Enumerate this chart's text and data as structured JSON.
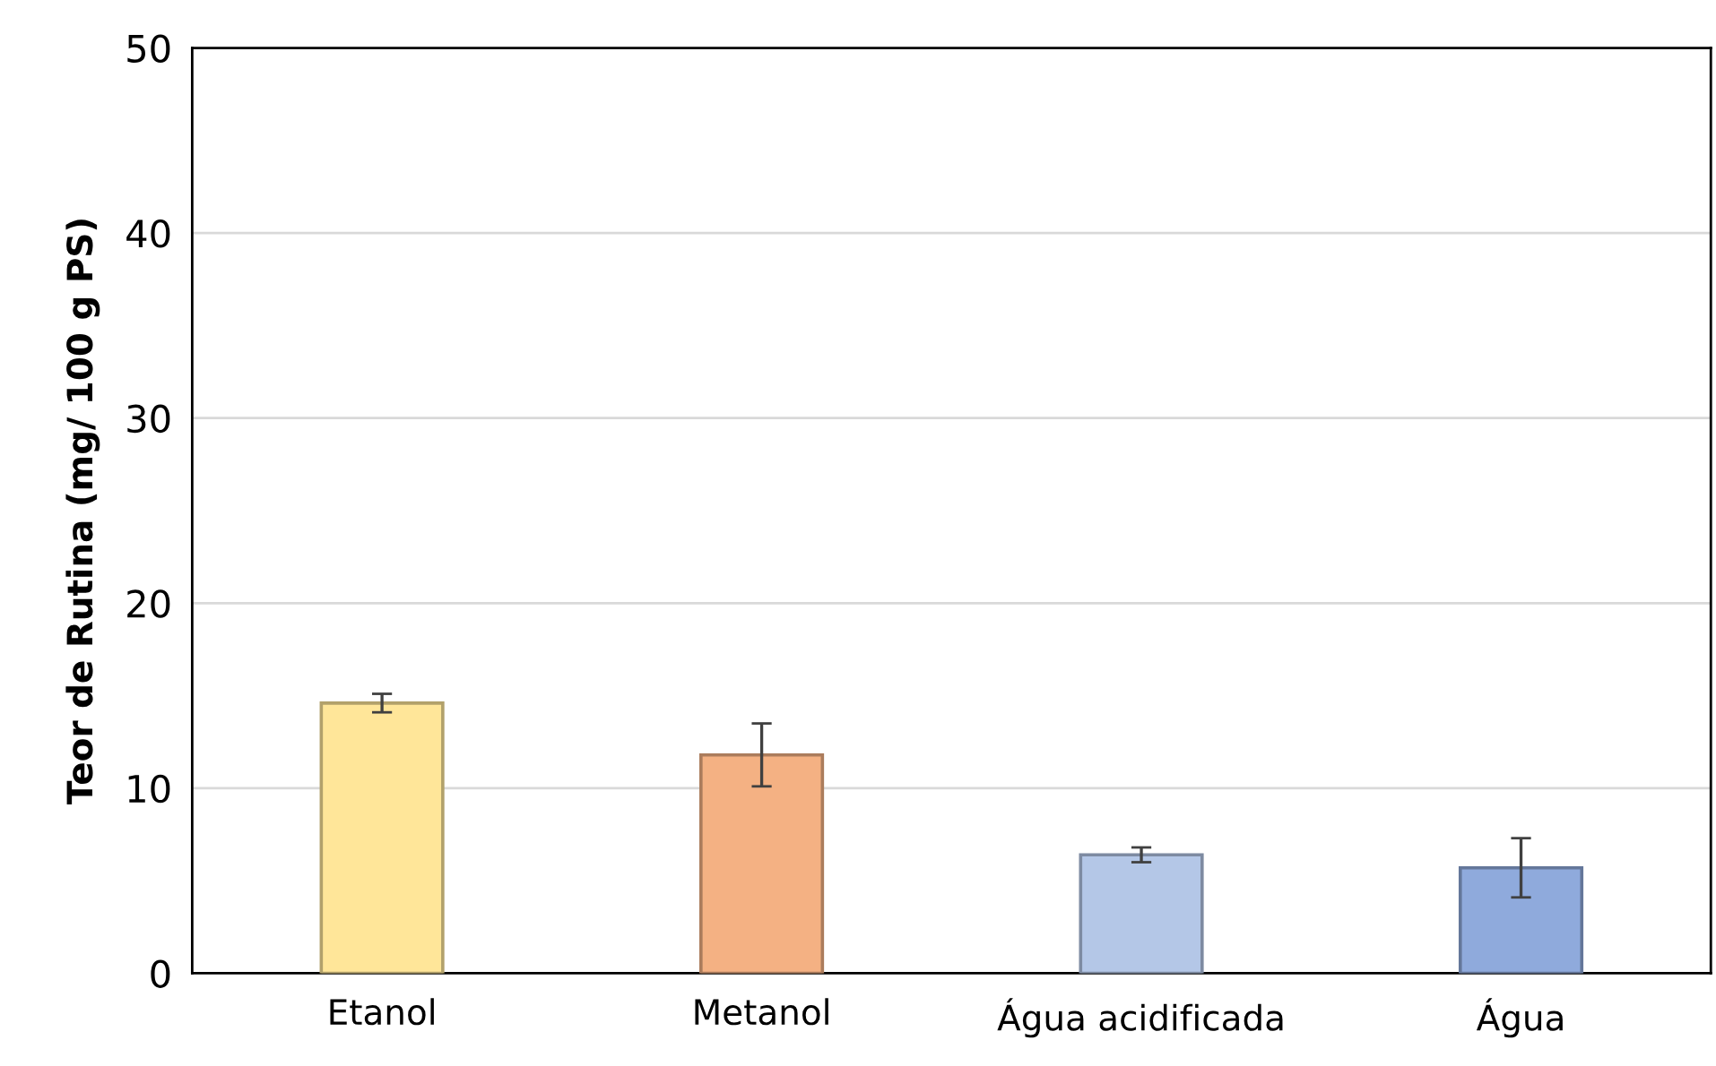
{
  "chart_data": {
    "type": "bar",
    "ylabel": "Teor de Rutina (mg/ 100 g PS)",
    "categories": [
      "Etanol",
      "Metanol",
      "Água acidificada",
      "Água"
    ],
    "values": [
      14.6,
      11.8,
      6.4,
      5.7
    ],
    "errors": [
      0.5,
      1.7,
      0.4,
      1.6
    ],
    "colors": [
      "#ffe699",
      "#f4b183",
      "#b4c7e7",
      "#8faadc"
    ],
    "ylim": [
      0,
      50
    ],
    "yticks": [
      0,
      10,
      20,
      30,
      40,
      50
    ],
    "grid": "y",
    "legend": false
  }
}
